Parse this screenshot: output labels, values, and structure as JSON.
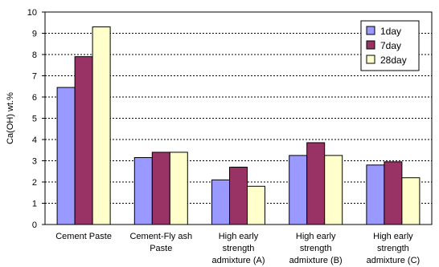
{
  "chart_data": {
    "type": "bar",
    "ylabel": "Ca(OH) wt.%",
    "ylim": [
      0,
      10
    ],
    "yticks": [
      "0",
      "1",
      "2",
      "3",
      "4",
      "5",
      "6",
      "7",
      "8",
      "9",
      "10"
    ],
    "grid": "horizontal dotted",
    "legend_position": "top-right",
    "categories": [
      [
        "Cement Paste"
      ],
      [
        "Cement-Fly ash",
        "Paste"
      ],
      [
        "High early",
        "strength",
        "admixture (A)"
      ],
      [
        "High early",
        "strength",
        "admixture (B)"
      ],
      [
        "High early",
        "strength",
        "admixture (C)"
      ]
    ],
    "series": [
      {
        "name": "1day",
        "color": "#9999ff",
        "values": [
          6.45,
          3.15,
          2.1,
          3.25,
          2.8
        ]
      },
      {
        "name": "7day",
        "color": "#993366",
        "values": [
          7.9,
          3.4,
          2.7,
          3.85,
          2.95
        ]
      },
      {
        "name": "28day",
        "color": "#ffffcc",
        "values": [
          9.3,
          3.4,
          1.8,
          3.25,
          2.2
        ]
      }
    ]
  }
}
